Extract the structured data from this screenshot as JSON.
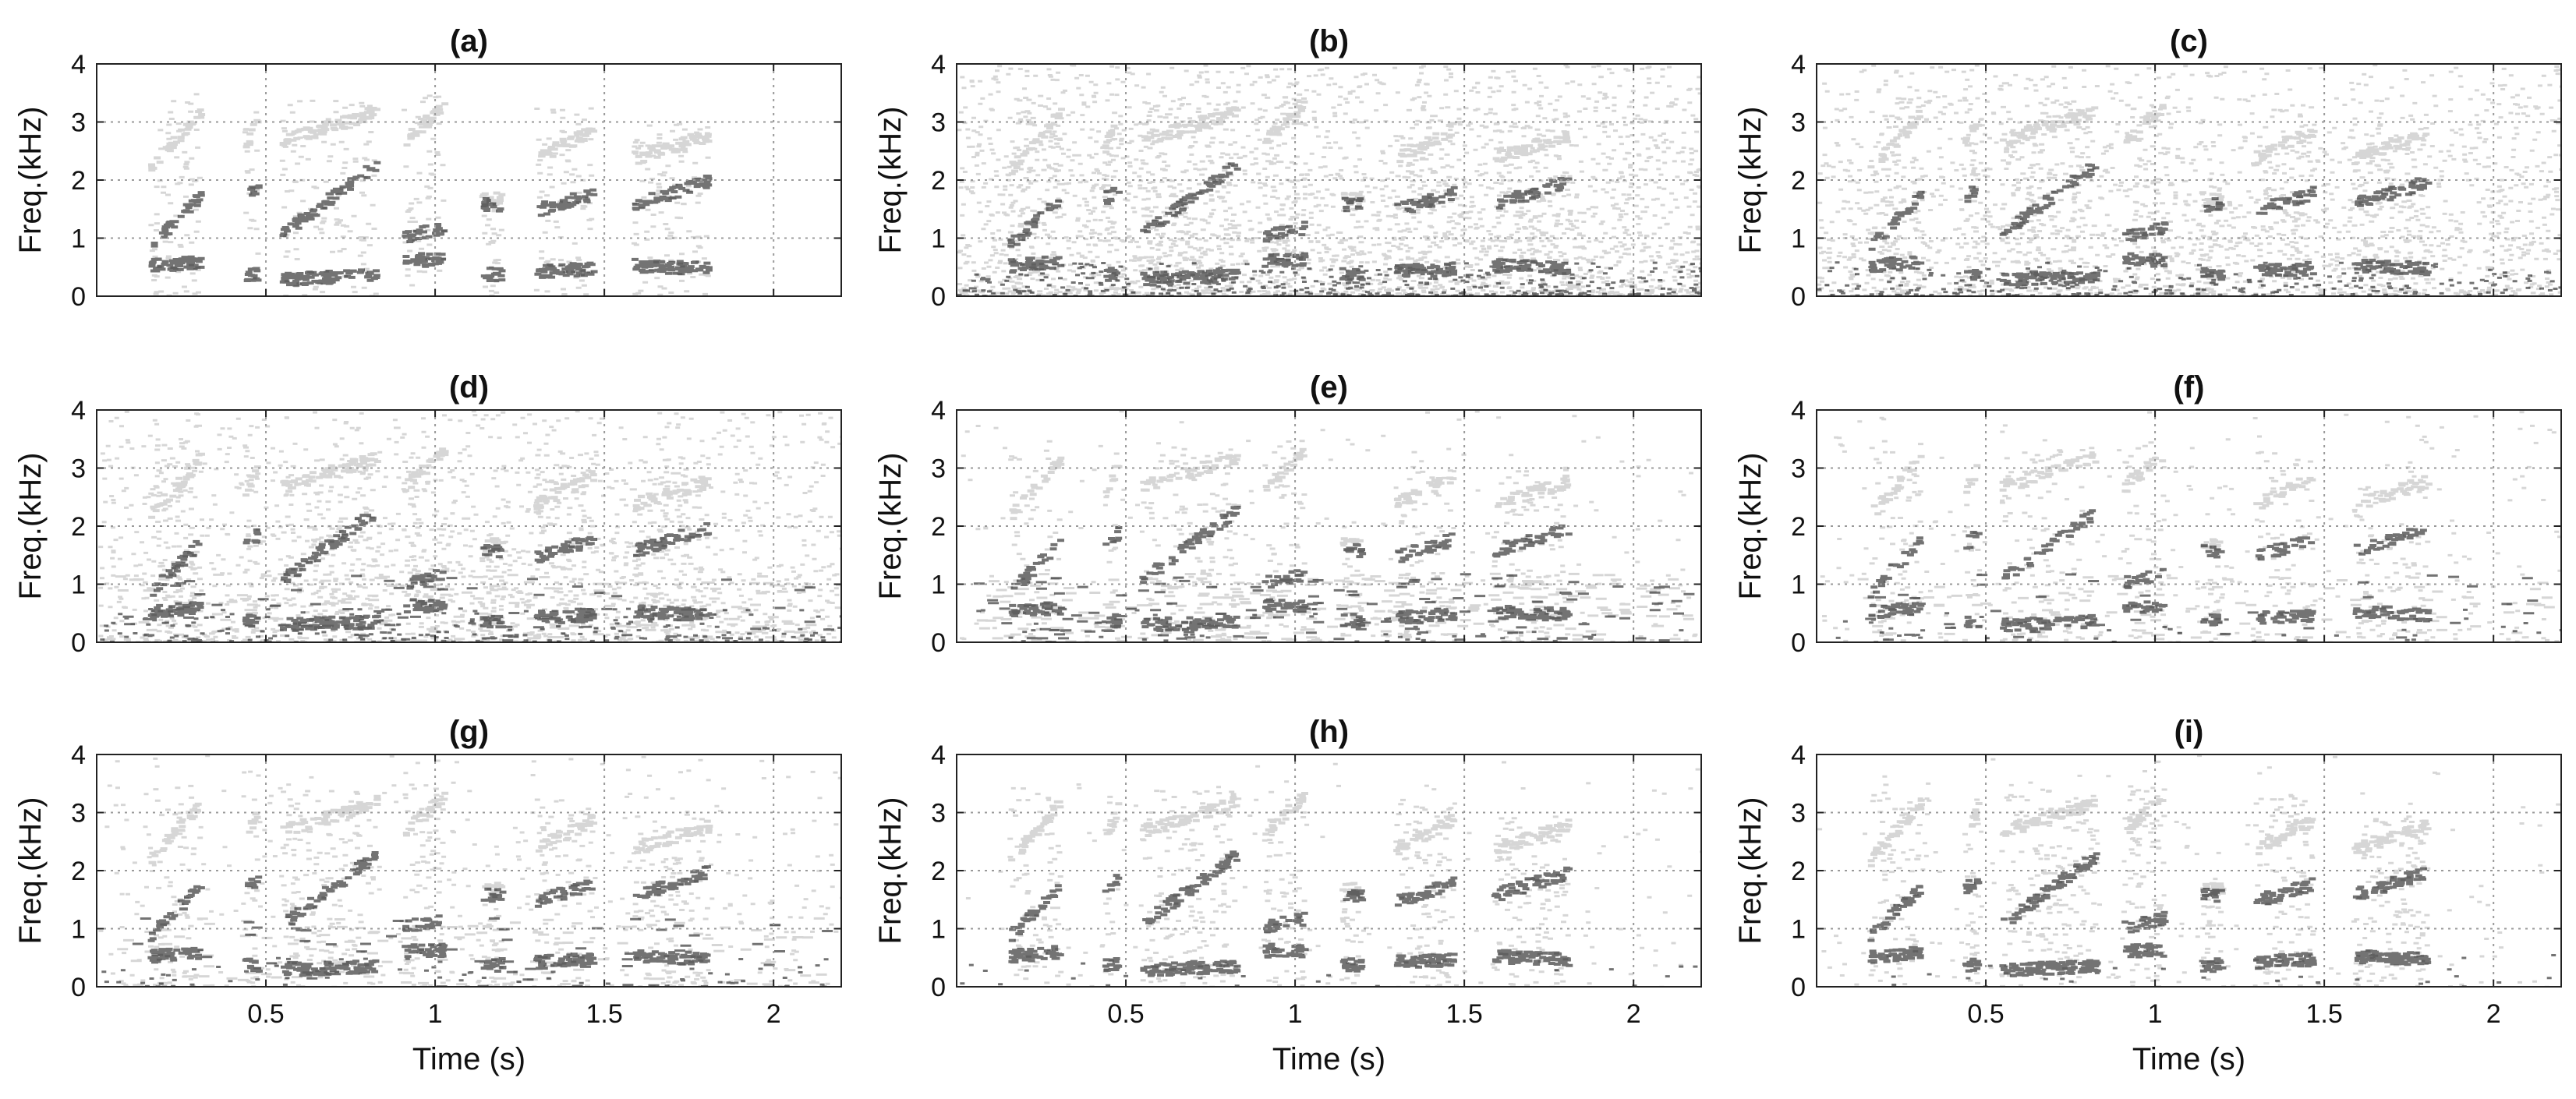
{
  "figure": {
    "colors": {
      "ink": "#111111",
      "frame": "#222222",
      "grid": "#9a9a9a",
      "background": "#ffffff"
    }
  },
  "chart_data": [
    {
      "type": "heatmap",
      "title": "(a)",
      "ylabel": "Freq.(kHz)",
      "xlabel": "",
      "xlim": [
        0,
        2.2
      ],
      "ylim": [
        0,
        4
      ],
      "xticks": [
        0.5,
        1,
        1.5,
        2
      ],
      "yticks": [
        0,
        1,
        2,
        3,
        4
      ],
      "xtick_labels_shown": false,
      "grid": true,
      "noise": 0.0,
      "clean": 1.0,
      "smear": 0.0,
      "colormap": "grayscale, dark = high energy"
    },
    {
      "type": "heatmap",
      "title": "(b)",
      "ylabel": "Freq.(kHz)",
      "xlabel": "",
      "xlim": [
        0,
        2.2
      ],
      "ylim": [
        0,
        4
      ],
      "xticks": [
        0.5,
        1,
        1.5,
        2
      ],
      "yticks": [
        0,
        1,
        2,
        3,
        4
      ],
      "xtick_labels_shown": false,
      "grid": true,
      "noise": 1.0,
      "clean": 0.85,
      "smear": 0.0,
      "colormap": "grayscale, dark = high energy"
    },
    {
      "type": "heatmap",
      "title": "(c)",
      "ylabel": "Freq.(kHz)",
      "xlabel": "",
      "xlim": [
        0,
        2.2
      ],
      "ylim": [
        0,
        4
      ],
      "xticks": [
        0.5,
        1,
        1.5,
        2
      ],
      "yticks": [
        0,
        1,
        2,
        3,
        4
      ],
      "xtick_labels_shown": false,
      "grid": true,
      "noise": 0.7,
      "clean": 0.8,
      "smear": 0.0,
      "colormap": "grayscale, dark = high energy"
    },
    {
      "type": "heatmap",
      "title": "(d)",
      "ylabel": "Freq.(kHz)",
      "xlabel": "",
      "xlim": [
        0,
        2.2
      ],
      "ylim": [
        0,
        4
      ],
      "xticks": [
        0.5,
        1,
        1.5,
        2
      ],
      "yticks": [
        0,
        1,
        2,
        3,
        4
      ],
      "xtick_labels_shown": false,
      "grid": true,
      "noise": 0.6,
      "clean": 0.9,
      "smear": 0.3,
      "colormap": "grayscale, dark = high energy"
    },
    {
      "type": "heatmap",
      "title": "(e)",
      "ylabel": "Freq.(kHz)",
      "xlabel": "",
      "xlim": [
        0,
        2.2
      ],
      "ylim": [
        0,
        4
      ],
      "xticks": [
        0.5,
        1,
        1.5,
        2
      ],
      "yticks": [
        0,
        1,
        2,
        3,
        4
      ],
      "xtick_labels_shown": false,
      "grid": true,
      "noise": 0.1,
      "clean": 0.75,
      "smear": 0.6,
      "colormap": "grayscale, dark = high energy"
    },
    {
      "type": "heatmap",
      "title": "(f)",
      "ylabel": "Freq.(kHz)",
      "xlabel": "",
      "xlim": [
        0,
        2.2
      ],
      "ylim": [
        0,
        4
      ],
      "xticks": [
        0.5,
        1,
        1.5,
        2
      ],
      "yticks": [
        0,
        1,
        2,
        3,
        4
      ],
      "xtick_labels_shown": false,
      "grid": true,
      "noise": 0.12,
      "clean": 0.65,
      "smear": 0.2,
      "colormap": "grayscale, dark = high energy"
    },
    {
      "type": "heatmap",
      "title": "(g)",
      "ylabel": "Freq.(kHz)",
      "xlabel": "Time (s)",
      "xlim": [
        0,
        2.2
      ],
      "ylim": [
        0,
        4
      ],
      "xticks": [
        0.5,
        1,
        1.5,
        2
      ],
      "yticks": [
        0,
        1,
        2,
        3,
        4
      ],
      "xtick_labels_shown": true,
      "grid": true,
      "noise": 0.18,
      "clean": 0.85,
      "smear": 0.25,
      "colormap": "grayscale, dark = high energy"
    },
    {
      "type": "heatmap",
      "title": "(h)",
      "ylabel": "Freq.(kHz)",
      "xlabel": "Time (s)",
      "xlim": [
        0,
        2.2
      ],
      "ylim": [
        0,
        4
      ],
      "xticks": [
        0.5,
        1,
        1.5,
        2
      ],
      "yticks": [
        0,
        1,
        2,
        3,
        4
      ],
      "xtick_labels_shown": true,
      "grid": true,
      "noise": 0.06,
      "clean": 0.95,
      "smear": 0.0,
      "colormap": "grayscale, dark = high energy"
    },
    {
      "type": "heatmap",
      "title": "(i)",
      "ylabel": "Freq.(kHz)",
      "xlabel": "Time (s)",
      "xlim": [
        0,
        2.2
      ],
      "ylim": [
        0,
        4
      ],
      "xticks": [
        0.5,
        1,
        1.5,
        2
      ],
      "yticks": [
        0,
        1,
        2,
        3,
        4
      ],
      "xtick_labels_shown": true,
      "grid": true,
      "noise": 0.08,
      "clean": 1.0,
      "smear": 0.0,
      "colormap": "grayscale, dark = high energy"
    }
  ]
}
